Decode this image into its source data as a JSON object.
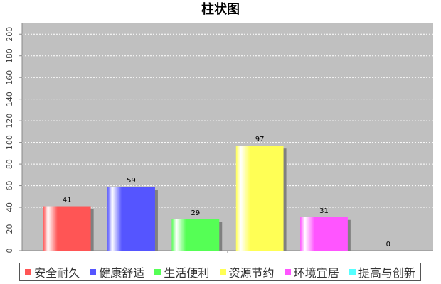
{
  "chart_data": {
    "type": "bar",
    "title": "柱状图",
    "categories": [
      null
    ],
    "series": [
      {
        "name": "安全耐久",
        "color": "#ff5555",
        "values": [
          41
        ]
      },
      {
        "name": "健康舒适",
        "color": "#5555ff",
        "values": [
          59
        ]
      },
      {
        "name": "生活便利",
        "color": "#55ff55",
        "values": [
          29
        ]
      },
      {
        "name": "资源节约",
        "color": "#ffff55",
        "values": [
          97
        ]
      },
      {
        "name": "环境宜居",
        "color": "#ff55ff",
        "values": [
          31
        ]
      },
      {
        "name": "提高与创新",
        "color": "#55ffff",
        "values": [
          0
        ]
      }
    ],
    "ylim": [
      0,
      210
    ],
    "yticks": [
      0,
      20,
      40,
      60,
      80,
      100,
      120,
      140,
      160,
      180,
      200
    ],
    "grid": true
  }
}
